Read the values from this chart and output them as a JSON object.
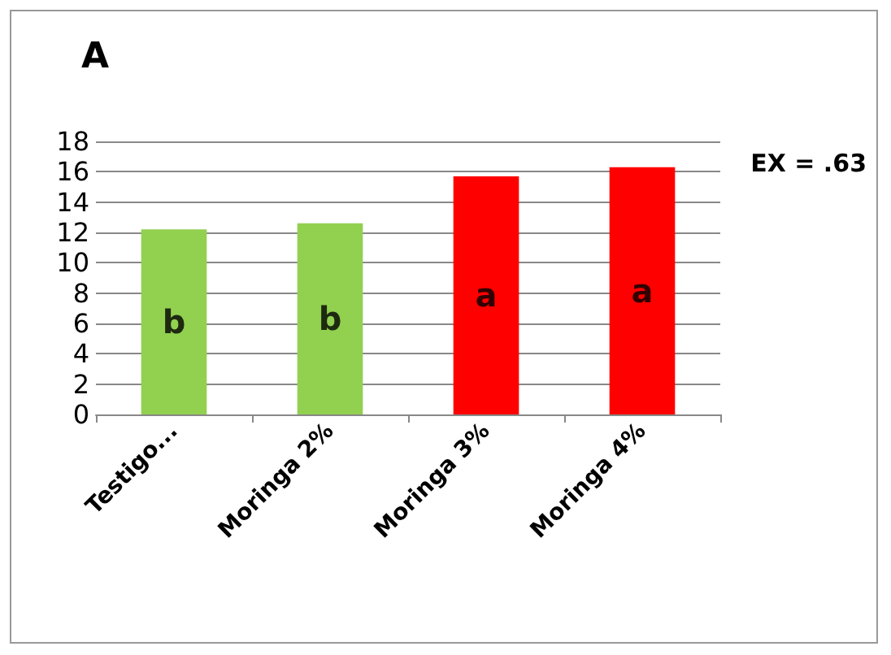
{
  "chart_data": {
    "type": "bar",
    "title": "A",
    "categories": [
      "Testigo...",
      "Moringa 2%",
      "Moringa 3%",
      "Moringa 4%"
    ],
    "values": [
      12.2,
      12.6,
      15.7,
      16.3
    ],
    "colors": [
      "#92d050",
      "#92d050",
      "#ff0000",
      "#ff0000"
    ],
    "ylim": [
      0,
      18
    ],
    "yticks": [
      0,
      2,
      4,
      6,
      8,
      10,
      12,
      14,
      16,
      18
    ],
    "grid": "y",
    "annotations": [
      "b",
      "b",
      "a",
      "a",
      "EX = .63"
    ]
  }
}
